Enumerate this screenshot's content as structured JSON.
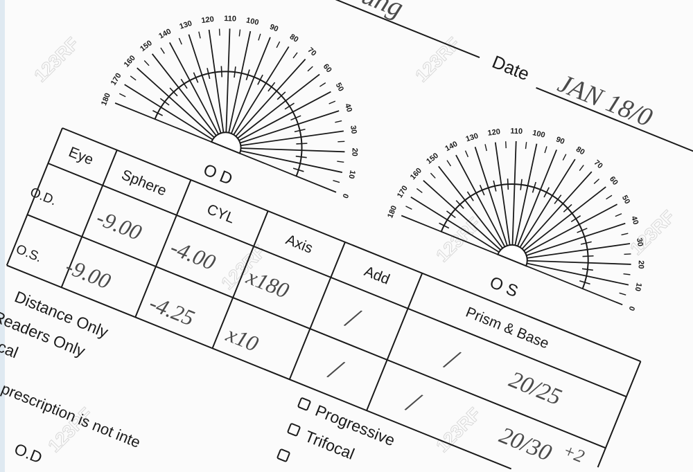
{
  "header": {
    "name_handwriting": "ung",
    "date_label": "Date",
    "date_value": "JAN 18/0"
  },
  "protractors": [
    {
      "label": "O D"
    },
    {
      "label": "O S"
    }
  ],
  "protractor_ticks": [
    0,
    10,
    20,
    30,
    40,
    50,
    60,
    70,
    80,
    90,
    100,
    110,
    120,
    130,
    140,
    150,
    160,
    170,
    180
  ],
  "table": {
    "columns": [
      "Eye",
      "Sphere",
      "CYL",
      "Axis",
      "Add",
      "Prism & Base"
    ],
    "rows": [
      {
        "eye": "O.D.",
        "sphere": "-9.00",
        "cyl": "-4.00",
        "axis": "x180",
        "add": "/",
        "prism": "/",
        "acuity": "20/25",
        "acuity_extra": ""
      },
      {
        "eye": "O.S.",
        "sphere": "-9.00",
        "cyl": "-4.25",
        "axis": "x10",
        "add": "/",
        "prism": "/",
        "acuity": "20/30",
        "acuity_extra": "+2"
      }
    ]
  },
  "lens_types": [
    "Distance Only",
    "Readers Only",
    "ifocal"
  ],
  "options": [
    {
      "label": "Progressive",
      "checked": false
    },
    {
      "label": "Trifocal",
      "checked": false
    },
    {
      "label": "",
      "checked": false
    }
  ],
  "notice": "prescription is not inte",
  "footer_eye": "O.D",
  "watermark": "123RF",
  "colors": {
    "ink": "#1a1a1a",
    "pencil": "#4a4a4a",
    "paper": "#fbfbfb"
  }
}
